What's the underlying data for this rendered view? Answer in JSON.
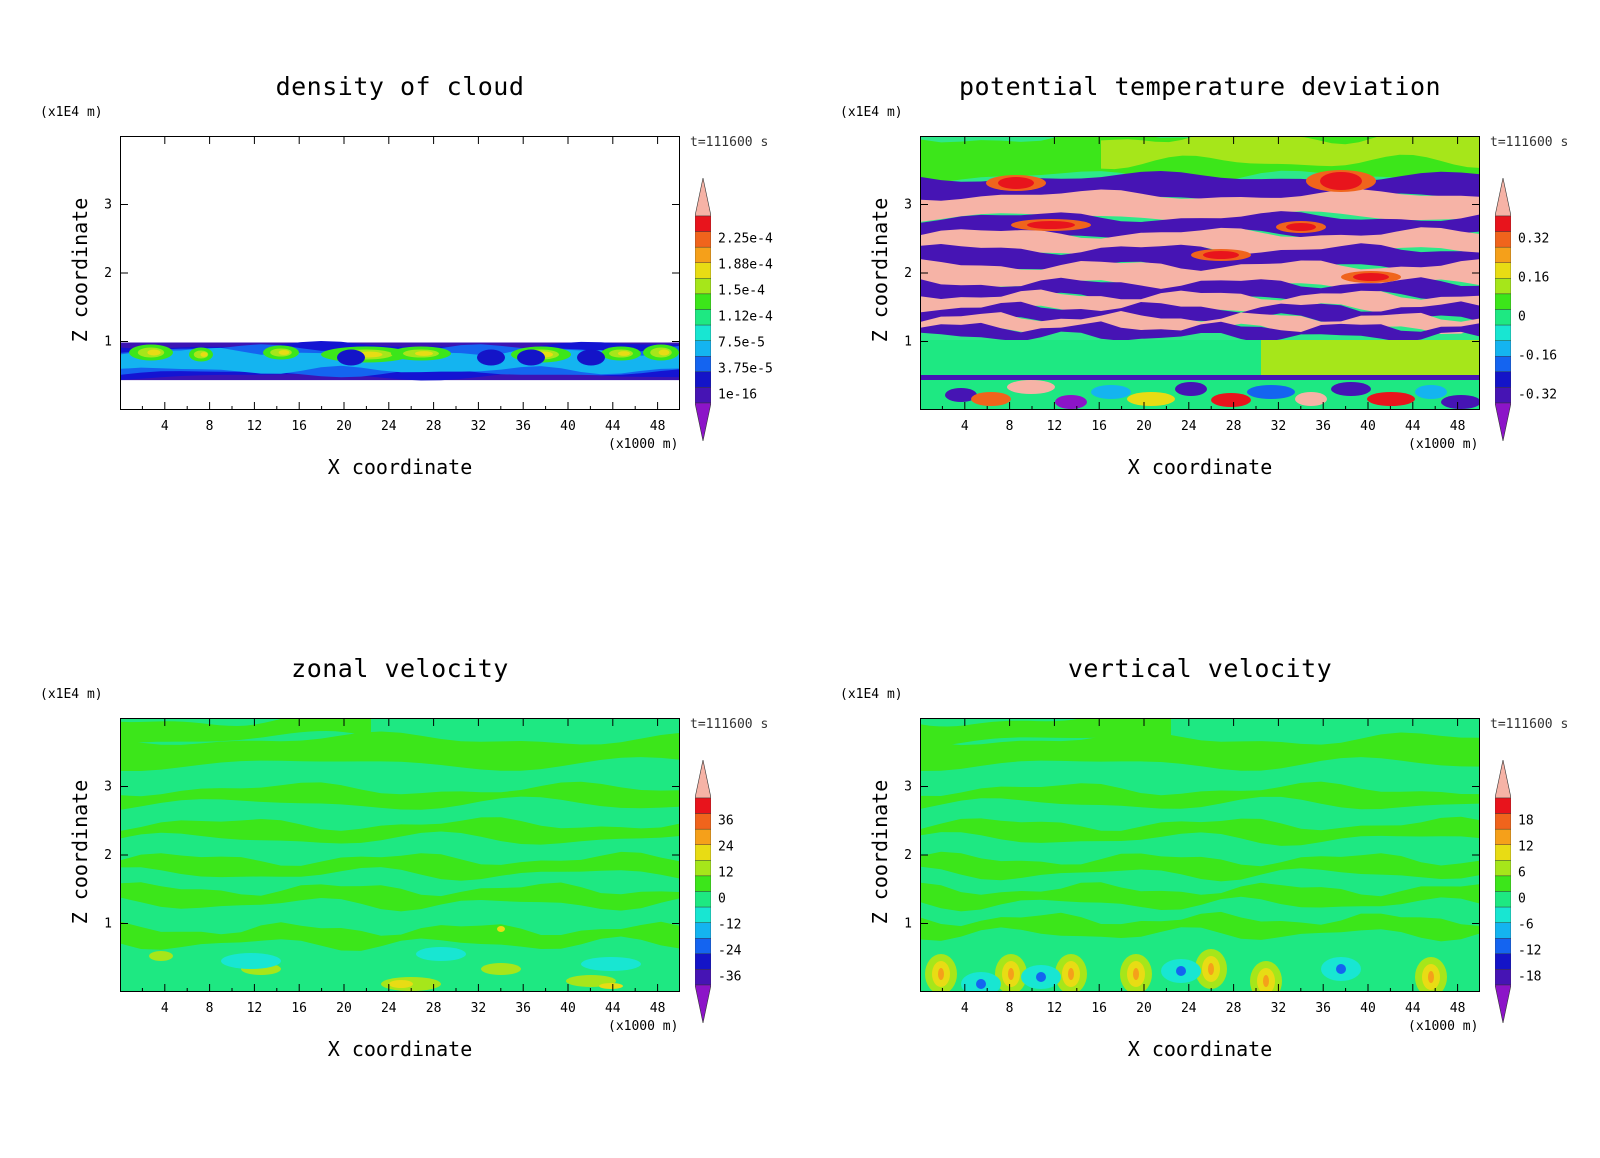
{
  "panels": [
    {
      "title": "density of cloud",
      "z_unit": "(x1E4 m)",
      "time_label": "t=111600 s",
      "x_unit": "(x1000 m)",
      "xlabel": "X coordinate",
      "ylabel": "Z coordinate",
      "colorbar_labels": [
        "2.25e-4",
        "1.88e-4",
        "1.5e-4",
        "1.12e-4",
        "7.5e-5",
        "3.75e-5",
        "1e-16"
      ],
      "background": "#ffffff"
    },
    {
      "title": "potential temperature deviation",
      "z_unit": "(x1E4 m)",
      "time_label": "t=111600 s",
      "x_unit": "(x1000 m)",
      "xlabel": "X coordinate",
      "ylabel": "Z coordinate",
      "colorbar_labels": [
        "0.32",
        "0.16",
        "0",
        "-0.16",
        "-0.32"
      ],
      "background": "#2ee88a"
    },
    {
      "title": "zonal velocity",
      "z_unit": "(x1E4 m)",
      "time_label": "t=111600 s",
      "x_unit": "(x1000 m)",
      "xlabel": "X coordinate",
      "ylabel": "Z coordinate",
      "colorbar_labels": [
        "36",
        "24",
        "12",
        "0",
        "-12",
        "-24",
        "-36"
      ],
      "background": "#1ee882"
    },
    {
      "title": "vertical velocity",
      "z_unit": "(x1E4 m)",
      "time_label": "t=111600 s",
      "x_unit": "(x1000 m)",
      "xlabel": "X coordinate",
      "ylabel": "Z coordinate",
      "colorbar_labels": [
        "18",
        "12",
        "6",
        "0",
        "-6",
        "-12",
        "-18"
      ],
      "background": "#1ee882"
    }
  ],
  "colorbar_colors": [
    "#f6b3a6",
    "#e8141c",
    "#f0641c",
    "#f5a01a",
    "#e8dc14",
    "#a6e61a",
    "#3ce61a",
    "#1ee882",
    "#18e6d2",
    "#14b4f0",
    "#1464f0",
    "#1414c8",
    "#4614b4",
    "#8c14c8"
  ],
  "chart_data": [
    {
      "type": "heatmap",
      "title": "density of cloud",
      "xlabel": "X coordinate",
      "ylabel": "Z coordinate",
      "x_ticks": [
        4,
        8,
        12,
        16,
        20,
        24,
        28,
        32,
        36,
        40,
        44,
        48
      ],
      "y_ticks": [
        1,
        2,
        3
      ],
      "xlim": [
        0,
        50
      ],
      "ylim": [
        0,
        4
      ],
      "x_unit": "(x1000 m)",
      "y_unit": "(x1E4 m)",
      "colorbar_levels": [
        0.000225,
        0.000188,
        0.00015,
        0.000112,
        7.5e-05,
        3.75e-05,
        1e-16
      ],
      "cloud_layer_z": [
        0.45,
        1.0
      ]
    },
    {
      "type": "heatmap",
      "title": "potential temperature deviation",
      "xlabel": "X coordinate",
      "ylabel": "Z coordinate",
      "x_ticks": [
        4,
        8,
        12,
        16,
        20,
        24,
        28,
        32,
        36,
        40,
        44,
        48
      ],
      "y_ticks": [
        1,
        2,
        3
      ],
      "xlim": [
        0,
        50
      ],
      "ylim": [
        0,
        4
      ],
      "colorbar_levels": [
        0.32,
        0.16,
        0,
        -0.16,
        -0.32
      ]
    },
    {
      "type": "heatmap",
      "title": "zonal velocity",
      "xlabel": "X coordinate",
      "ylabel": "Z coordinate",
      "x_ticks": [
        4,
        8,
        12,
        16,
        20,
        24,
        28,
        32,
        36,
        40,
        44,
        48
      ],
      "y_ticks": [
        1,
        2,
        3
      ],
      "xlim": [
        0,
        50
      ],
      "ylim": [
        0,
        4
      ],
      "colorbar_levels": [
        36,
        24,
        12,
        0,
        -12,
        -24,
        -36
      ]
    },
    {
      "type": "heatmap",
      "title": "vertical velocity",
      "xlabel": "X coordinate",
      "ylabel": "Z coordinate",
      "x_ticks": [
        4,
        8,
        12,
        16,
        20,
        24,
        28,
        32,
        36,
        40,
        44,
        48
      ],
      "y_ticks": [
        1,
        2,
        3
      ],
      "xlim": [
        0,
        50
      ],
      "ylim": [
        0,
        4
      ],
      "colorbar_levels": [
        18,
        12,
        6,
        0,
        -6,
        -12,
        -18
      ]
    }
  ]
}
